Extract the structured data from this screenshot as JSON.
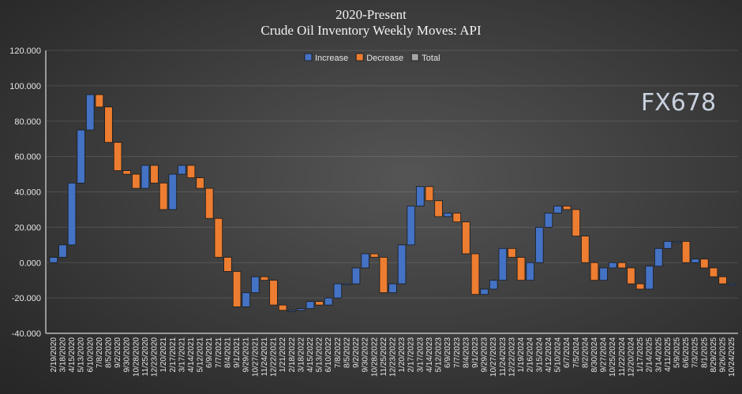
{
  "chart_data": {
    "type": "waterfall",
    "title": "2020-Present",
    "subtitle": "Crude Oil Inventory Weekly Moves:  API",
    "xlabel": "",
    "ylabel": "",
    "ylim": [
      -40,
      120
    ],
    "yticks": [
      "120.000",
      "100.000",
      "80.000",
      "60.000",
      "40.000",
      "20.000",
      "0.000",
      "-20.000",
      "-40.000"
    ],
    "ytick_values": [
      120,
      100,
      80,
      60,
      40,
      20,
      0,
      -20,
      -40
    ],
    "grid": true,
    "legend_position": "top-center",
    "legend": [
      {
        "label": "Increase",
        "color": "#4472c4"
      },
      {
        "label": "Decrease",
        "color": "#ed7d31"
      },
      {
        "label": "Total",
        "color": "#a5a5a5"
      }
    ],
    "categories": [
      "2/19/2020",
      "3/18/2020",
      "4/15/2020",
      "5/13/2020",
      "6/10/2020",
      "7/8/2020",
      "8/5/2020",
      "9/2/2020",
      "9/30/2020",
      "10/28/2020",
      "11/25/2020",
      "12/23/2020",
      "1/20/2021",
      "2/17/2021",
      "3/17/2021",
      "4/14/2021",
      "5/12/2021",
      "6/9/2021",
      "7/7/2021",
      "8/4/2021",
      "9/1/2021",
      "9/29/2021",
      "10/27/2021",
      "11/24/2021",
      "12/22/2021",
      "1/21/2022",
      "2/18/2022",
      "3/18/2022",
      "4/15/2022",
      "5/13/2022",
      "6/10/2022",
      "7/8/2022",
      "8/5/2022",
      "9/2/2022",
      "9/30/2022",
      "10/28/2022",
      "11/25/2022",
      "12/23/2022",
      "1/20/2023",
      "2/17/2023",
      "3/17/2023",
      "4/14/2023",
      "5/12/2023",
      "6/9/2023",
      "7/7/2023",
      "8/4/2023",
      "9/1/2023",
      "9/29/2023",
      "10/27/2023",
      "11/24/2023",
      "12/22/2023",
      "1/19/2024",
      "2/16/2024",
      "3/15/2024",
      "4/12/2024",
      "5/10/2024",
      "6/7/2024",
      "7/5/2024",
      "8/2/2024",
      "8/30/2024",
      "9/27/2024",
      "10/25/2024",
      "11/22/2024",
      "12/20/2024",
      "1/17/2025",
      "2/14/2025",
      "3/14/2025",
      "4/11/2025",
      "5/9/2025",
      "6/6/2025",
      "7/3/2025",
      "8/1/2025",
      "8/29/2025",
      "9/26/2025",
      "10/24/2025"
    ],
    "cumulative_level": [
      3,
      10,
      45,
      75,
      95,
      88,
      68,
      52,
      50,
      42,
      55,
      45,
      30,
      50,
      55,
      48,
      42,
      25,
      3,
      -5,
      -25,
      -17,
      -8,
      -10,
      -24,
      -27,
      -27,
      -26,
      -22,
      -24,
      -20,
      -12,
      -12,
      -3,
      5,
      3,
      -17,
      -12,
      10,
      32,
      43,
      35,
      26,
      28,
      23,
      5,
      -18,
      -15,
      -10,
      8,
      3,
      -10,
      0,
      20,
      28,
      32,
      30,
      15,
      0,
      -10,
      -3,
      0,
      -3,
      -12,
      -15,
      -2,
      8,
      12,
      12,
      0,
      2,
      -3,
      -8,
      -12,
      -12
    ]
  },
  "watermark": "FX678"
}
